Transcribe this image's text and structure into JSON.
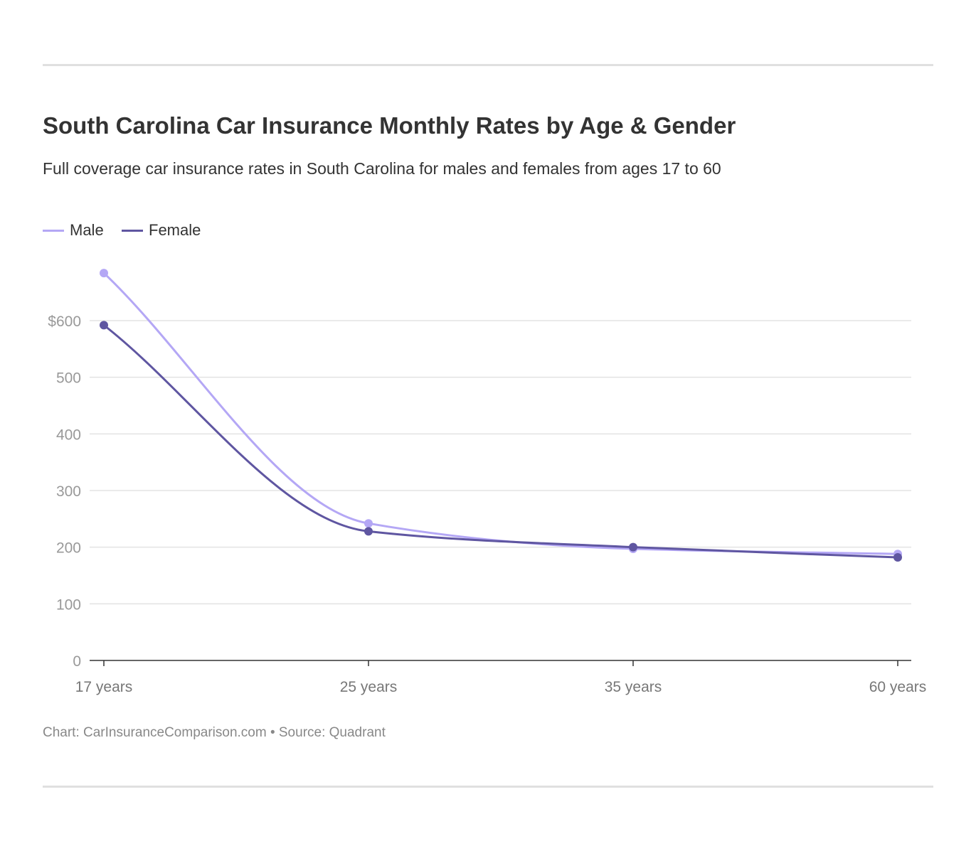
{
  "chart_data": {
    "type": "line",
    "title": "South Carolina Car Insurance Monthly Rates by Age & Gender",
    "subtitle": "Full coverage car insurance rates in South Carolina for males and females from ages 17 to 60",
    "categories": [
      "17 years",
      "25 years",
      "35 years",
      "60 years"
    ],
    "series": [
      {
        "name": "Male",
        "color": "#b4a7f5",
        "values": [
          684,
          242,
          197,
          188
        ]
      },
      {
        "name": "Female",
        "color": "#5f56a1",
        "values": [
          592,
          228,
          200,
          182
        ]
      }
    ],
    "yticks": [
      0,
      100,
      200,
      300,
      400,
      500,
      600
    ],
    "ytick_labels": [
      "0",
      "100",
      "200",
      "300",
      "400",
      "500",
      "$600"
    ],
    "ylim": [
      0,
      700
    ],
    "xlabel": "",
    "ylabel": "",
    "grid": true,
    "legend": "top-left"
  },
  "footer": "Chart: CarInsuranceComparison.com • Source: Quadrant"
}
